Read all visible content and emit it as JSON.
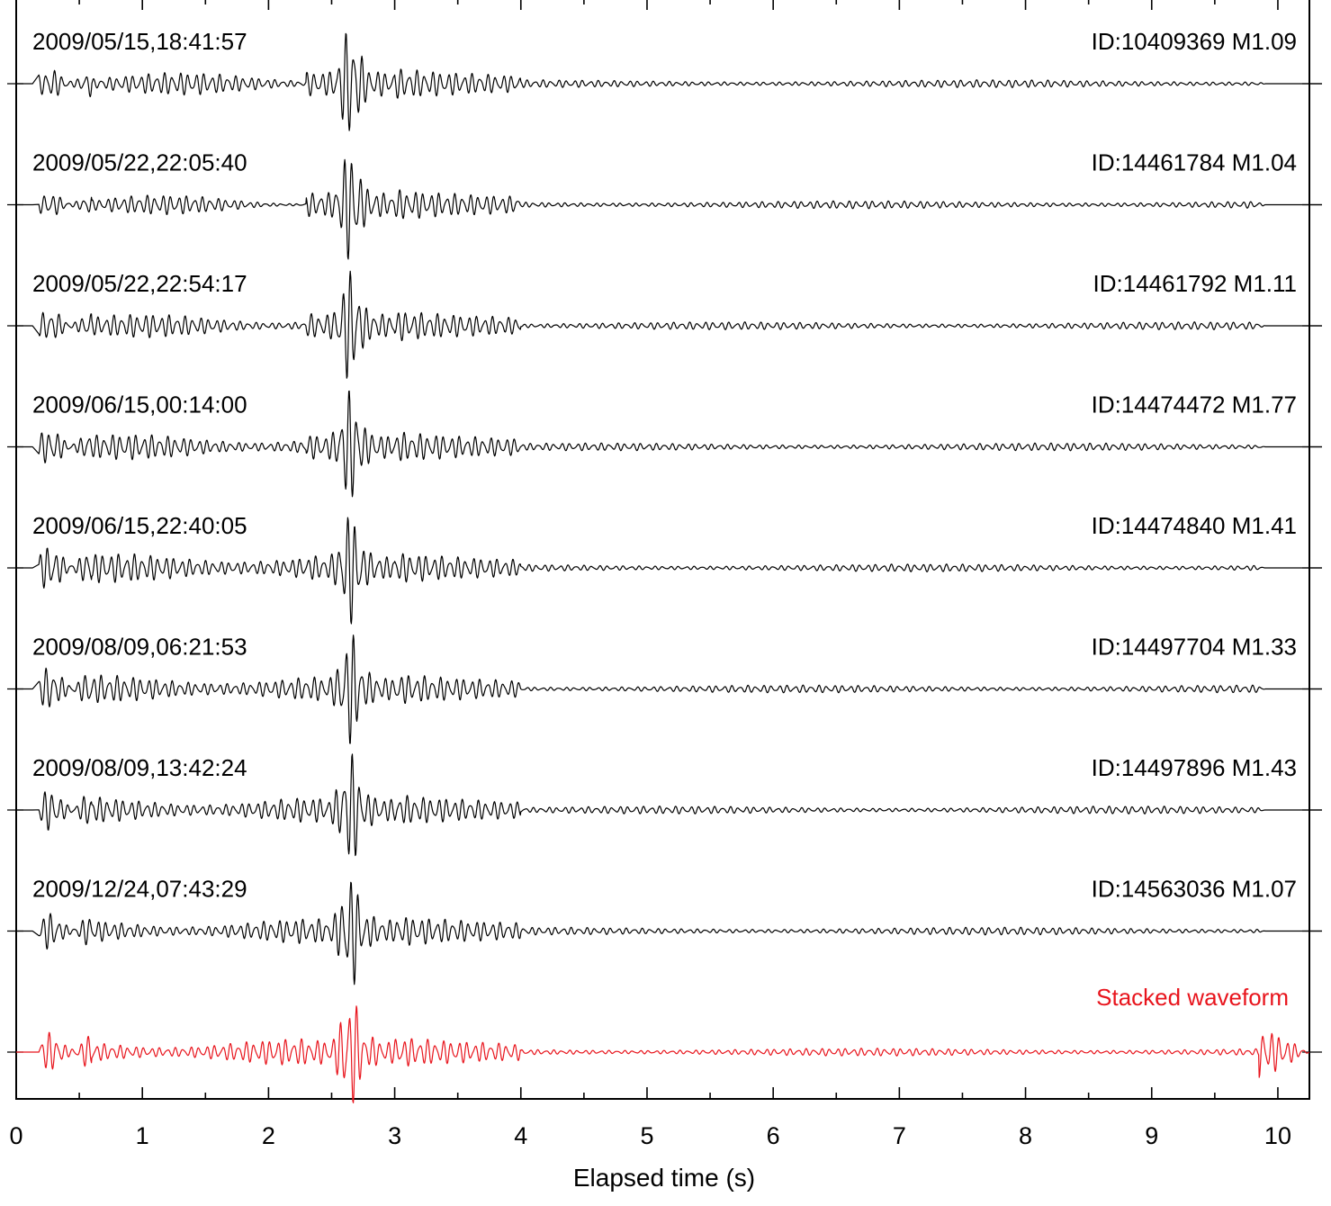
{
  "chart_data": {
    "type": "line",
    "title": "",
    "xlabel": "Elapsed time (s)",
    "ylabel": "",
    "xlim": [
      0,
      10.25
    ],
    "x_ticks": [
      "0",
      "1",
      "2",
      "3",
      "4",
      "5",
      "6",
      "7",
      "8",
      "9",
      "10"
    ],
    "x_tick_values": [
      0,
      1,
      2,
      3,
      4,
      5,
      6,
      7,
      8,
      9,
      10
    ],
    "grid": false,
    "legend": "none",
    "trace_window": [
      0.18,
      9.9
    ],
    "main_arrival_s": 2.65,
    "series": [
      {
        "left_label": "2009/05/15,18:41:57",
        "right_label": "ID:10409369 M1.09",
        "color": "#000000",
        "early_amplitude": 0.28
      },
      {
        "left_label": "2009/05/22,22:05:40",
        "right_label": "ID:14461784 M1.04",
        "color": "#000000",
        "early_amplitude": 0.22
      },
      {
        "left_label": "2009/05/22,22:54:17",
        "right_label": "ID:14461792 M1.11",
        "color": "#000000",
        "early_amplitude": 0.3
      },
      {
        "left_label": "2009/06/15,00:14:00",
        "right_label": "ID:14474472 M1.77",
        "color": "#000000",
        "early_amplitude": 0.34
      },
      {
        "left_label": "2009/06/15,22:40:05",
        "right_label": "ID:14474840 M1.41",
        "color": "#000000",
        "early_amplitude": 0.42
      },
      {
        "left_label": "2009/08/09,06:21:53",
        "right_label": "ID:14497704 M1.33",
        "color": "#000000",
        "early_amplitude": 0.4
      },
      {
        "left_label": "2009/08/09,13:42:24",
        "right_label": "ID:14497896 M1.43",
        "color": "#000000",
        "early_amplitude": 0.38
      },
      {
        "left_label": "2009/12/24,07:43:29",
        "right_label": "ID:14563036 M1.07",
        "color": "#000000",
        "early_amplitude": 0.34
      },
      {
        "left_label": "",
        "right_label": "Stacked waveform",
        "color": "#e8141c",
        "early_amplitude": 0.36
      }
    ]
  }
}
